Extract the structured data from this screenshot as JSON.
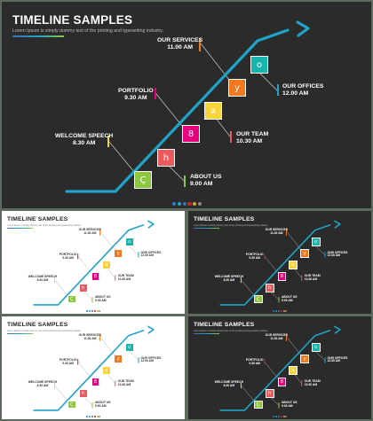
{
  "colors": {
    "background": "#5f6a5f",
    "dark_slide": "#2b2b2b",
    "light_slide": "#ffffff",
    "line": "#1ea3c9",
    "title_dark": "#ffffff",
    "title_light": "#222222",
    "label_dark": "#ffffff",
    "label_light": "#333333",
    "tiles": [
      "#8dc63f",
      "#ec5a5e",
      "#e6007e",
      "#f7d43c",
      "#f3791f",
      "#18b5ae"
    ],
    "markers": [
      "#f7d43c",
      "#8dc63f",
      "#e6007e",
      "#ec5a5e",
      "#f3791f",
      "#1ea3c9"
    ],
    "dots": [
      "#2f7ad1",
      "#1ea3c9",
      "#3b6fb6",
      "#c0262d",
      "#d7a52b",
      "#888888"
    ]
  },
  "slides": [
    {
      "id": "main",
      "theme": "dark",
      "title": "TIMELINE SAMPLES",
      "subtitle": "Lorem Ipsum is simply dummy text of the printing and typesetting industry.",
      "glyphs": [
        "Ç",
        "h",
        "8",
        "a",
        "y",
        "o"
      ],
      "events": [
        {
          "name": "WELCOME SPEECH",
          "time": "8.30 AM"
        },
        {
          "name": "ABOUT US",
          "time": "9.00 AM"
        },
        {
          "name": "PORTFOLIO",
          "time": "9.30 AM"
        },
        {
          "name": "OUR TEAM",
          "time": "10.30 AM"
        },
        {
          "name": "OUR SERVICES",
          "time": "11.00 AM"
        },
        {
          "name": "OUR OFFICES",
          "time": "12.00 AM"
        }
      ]
    },
    {
      "id": "thumb-1",
      "theme": "light",
      "title": "TIMELINE SAMPLES",
      "subtitle": "Lorem Ipsum is simply dummy text of the printing and typesetting industry.",
      "glyphs": [
        "Ç",
        "h",
        "8",
        "a",
        "y",
        "o"
      ],
      "events": [
        {
          "name": "WELCOME SPEECH",
          "time": "8.30 AM"
        },
        {
          "name": "ABOUT US",
          "time": "9.00 AM"
        },
        {
          "name": "PORTFOLIO",
          "time": "9.30 AM"
        },
        {
          "name": "OUR TEAM",
          "time": "10.30 AM"
        },
        {
          "name": "OUR SERVICES",
          "time": "11.00 AM"
        },
        {
          "name": "OUR OFFICES",
          "time": "12.00 AM"
        }
      ]
    },
    {
      "id": "thumb-2",
      "theme": "dark",
      "title": "TIMELINE SAMPLES",
      "subtitle": "Lorem Ipsum is simply dummy text of the printing and typesetting industry.",
      "glyphs": [
        "Ç",
        "h",
        "8",
        "a",
        "y",
        "o"
      ],
      "events": [
        {
          "name": "WELCOME SPEECH",
          "time": "8.30 AM"
        },
        {
          "name": "ABOUT US",
          "time": "9.00 AM"
        },
        {
          "name": "PORTFOLIO",
          "time": "9.30 AM"
        },
        {
          "name": "OUR TEAM",
          "time": "10.30 AM"
        },
        {
          "name": "OUR SERVICES",
          "time": "11.00 AM"
        },
        {
          "name": "OUR OFFICES",
          "time": "12.00 AM"
        }
      ]
    },
    {
      "id": "thumb-3",
      "theme": "light",
      "title": "TIMELINE SAMPLES",
      "subtitle": "Lorem Ipsum is simply dummy text of the printing and typesetting industry.",
      "glyphs": [
        "Ç",
        "h",
        "8",
        "a",
        "y",
        "o"
      ],
      "events": [
        {
          "name": "WELCOME SPEECH",
          "time": "8.30 AM"
        },
        {
          "name": "ABOUT US",
          "time": "9.00 AM"
        },
        {
          "name": "PORTFOLIO",
          "time": "9.30 AM"
        },
        {
          "name": "OUR TEAM",
          "time": "10.30 AM"
        },
        {
          "name": "OUR SERVICES",
          "time": "11.00 AM"
        },
        {
          "name": "OUR OFFICES",
          "time": "12.00 AM"
        }
      ]
    },
    {
      "id": "thumb-4",
      "theme": "dark",
      "title": "TIMELINE SAMPLES",
      "subtitle": "Lorem Ipsum is simply dummy text of the printing and typesetting industry.",
      "glyphs": [
        "Ç",
        "h",
        "8",
        "a",
        "y",
        "o"
      ],
      "events": [
        {
          "name": "WELCOME SPEECH",
          "time": "8.30 AM"
        },
        {
          "name": "ABOUT US",
          "time": "9.00 AM"
        },
        {
          "name": "PORTFOLIO",
          "time": "9.30 AM"
        },
        {
          "name": "OUR TEAM",
          "time": "10.30 AM"
        },
        {
          "name": "OUR SERVICES",
          "time": "11.00 AM"
        },
        {
          "name": "OUR OFFICES",
          "time": "12.00 AM"
        }
      ]
    }
  ]
}
